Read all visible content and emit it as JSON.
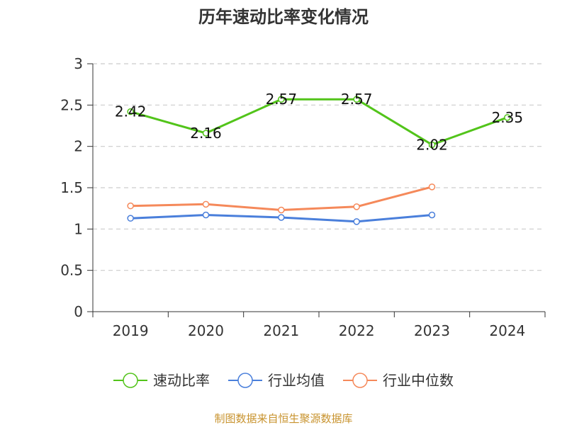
{
  "chart_data": {
    "type": "line",
    "title": "历年速动比率变化情况",
    "categories": [
      "2019",
      "2020",
      "2021",
      "2022",
      "2023",
      "2024"
    ],
    "ylim": [
      0,
      3
    ],
    "yticks": [
      "0",
      "0.5",
      "1",
      "1.5",
      "2",
      "2.5",
      "3"
    ],
    "grid": "horizontal dashed",
    "legend_position": "bottom",
    "series": [
      {
        "name": "速动比率",
        "color": "#52c41a",
        "values": [
          2.42,
          2.16,
          2.57,
          2.57,
          2.02,
          2.35
        ],
        "labels": [
          "2.42",
          "2.16",
          "2.57",
          "2.57",
          "2.02",
          "2.35"
        ]
      },
      {
        "name": "行业均值",
        "color": "#4a7fdb",
        "values": [
          1.13,
          1.17,
          1.14,
          1.09,
          1.17,
          null
        ]
      },
      {
        "name": "行业中位数",
        "color": "#f5895a",
        "values": [
          1.28,
          1.3,
          1.23,
          1.27,
          1.51,
          null
        ]
      }
    ]
  },
  "footer": {
    "source": "制图数据来自恒生聚源数据库",
    "source_color": "#c8932e"
  }
}
